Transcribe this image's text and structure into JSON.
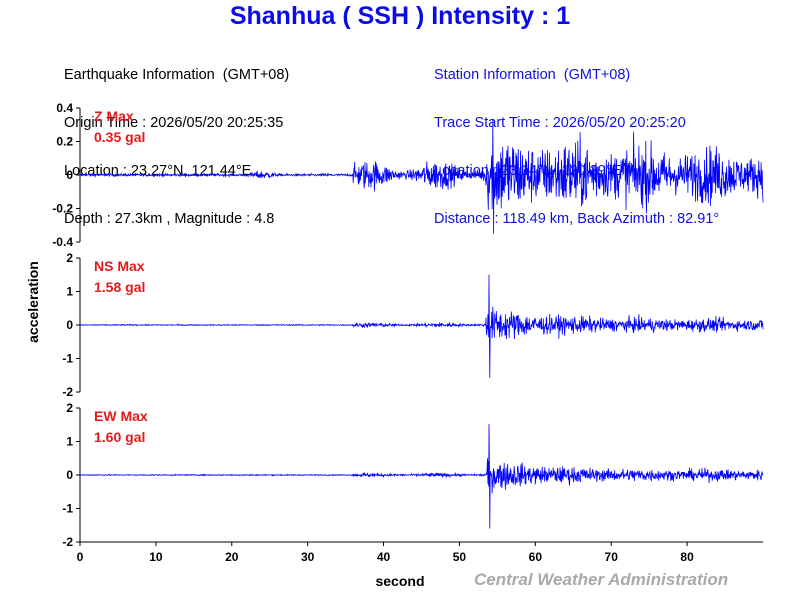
{
  "header": {
    "title": "Shanhua ( SSH ) Intensity : 1"
  },
  "earthquake_info": {
    "heading": "Earthquake Information  (GMT+08)",
    "origin_time": "Origin Time : 2026/05/20 20:25:35",
    "location": "Location : 23.27°N, 121.44°E",
    "depth_magnitude": "Depth : 27.3km , Magnitude : 4.8"
  },
  "station_info": {
    "heading": "Station Information  (GMT+08)",
    "trace_start": "Trace Start Time : 2026/05/20 20:25:20",
    "location": "Location : 23.14°N, 120.29°E",
    "distance": "Distance : 118.49 km, Back Azimuth : 82.91°"
  },
  "credit": "Central Weather Administration",
  "colors": {
    "title": "#0b0be6",
    "trace": "#0000ff",
    "max_label": "#e41a1a",
    "station_text": "#1010e0",
    "credit": "#a9a9a9"
  },
  "chart_data": {
    "type": "line",
    "xlabel": "second",
    "ylabel": "acceleration",
    "xlim": [
      0,
      90
    ],
    "x_ticks": [
      "0",
      "10",
      "20",
      "30",
      "40",
      "50",
      "60",
      "70",
      "80"
    ],
    "panels": [
      {
        "name": "Z",
        "max_label": "Z Max",
        "max_value": "0.35 gal",
        "ylim": [
          -0.4,
          0.4
        ],
        "y_ticks": [
          "0.4",
          "0.2",
          "0",
          "-0.2",
          "-0.4"
        ],
        "y_tick_values": [
          0.4,
          0.2,
          0,
          -0.2,
          -0.4
        ],
        "peak": 0.35,
        "peak_time": 54.5,
        "noise_level": 0.012,
        "p_arrival": 36,
        "s_arrival": 53.5,
        "p_amplitude": 0.14,
        "s_amplitude": 0.2,
        "coda_decay": 0.012
      },
      {
        "name": "NS",
        "max_label": "NS Max",
        "max_value": "1.58 gal",
        "ylim": [
          -2,
          2
        ],
        "y_ticks": [
          "2",
          "1",
          "0",
          "-1",
          "-2"
        ],
        "y_tick_values": [
          2,
          1,
          0,
          -1,
          -2
        ],
        "peak": 1.58,
        "peak_time": 54,
        "noise_level": 0.025,
        "p_arrival": 36,
        "s_arrival": 53.5,
        "p_amplitude": 0.1,
        "s_amplitude": 0.6,
        "coda_decay": 0.045
      },
      {
        "name": "EW",
        "max_label": "EW Max",
        "max_value": "1.60 gal",
        "ylim": [
          -2,
          2
        ],
        "y_ticks": [
          "2",
          "1",
          "0",
          "-1",
          "-2"
        ],
        "y_tick_values": [
          2,
          1,
          0,
          -1,
          -2
        ],
        "peak": 1.6,
        "peak_time": 54,
        "noise_level": 0.025,
        "p_arrival": 36,
        "s_arrival": 53.5,
        "p_amplitude": 0.08,
        "s_amplitude": 0.55,
        "coda_decay": 0.045
      }
    ]
  }
}
